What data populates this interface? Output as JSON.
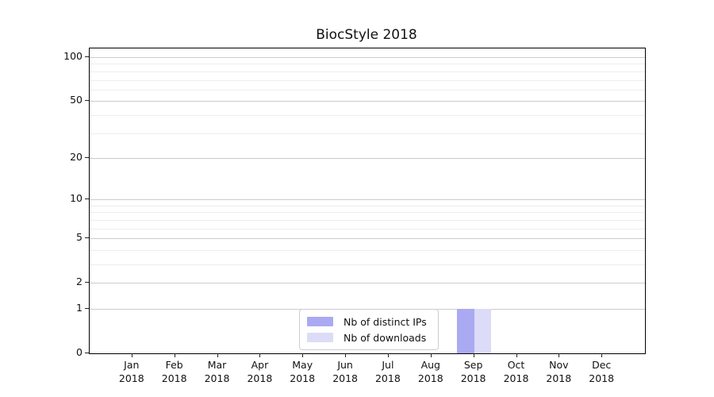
{
  "title": "BiocStyle 2018",
  "chart_data": {
    "type": "bar",
    "title": "BiocStyle 2018",
    "categories": [
      "Jan",
      "Feb",
      "Mar",
      "Apr",
      "May",
      "Jun",
      "Jul",
      "Aug",
      "Sep",
      "Oct",
      "Nov",
      "Dec"
    ],
    "year_label": "2018",
    "series": [
      {
        "name": "Nb of distinct IPs",
        "color": "#aaaaf2",
        "values": [
          0,
          0,
          0,
          0,
          0,
          0,
          0,
          0,
          1,
          0,
          0,
          0
        ]
      },
      {
        "name": "Nb of downloads",
        "color": "#dcdcf8",
        "values": [
          0,
          0,
          0,
          0,
          0,
          0,
          0,
          0,
          1,
          0,
          0,
          0
        ]
      }
    ],
    "y_axis": {
      "scale": "log1p",
      "major_ticks": [
        0,
        1,
        2,
        5,
        10,
        20,
        50,
        100
      ],
      "minor_ticks": [
        3,
        4,
        6,
        7,
        8,
        9,
        30,
        40,
        60,
        70,
        80,
        90
      ],
      "range": [
        0,
        100
      ]
    },
    "x_axis": {
      "tick_labels_two_lines": true
    },
    "grid": true,
    "legend_position": "lower center",
    "colors": {
      "major_grid": "#cccccc",
      "minor_grid": "#ededed",
      "spine": "#000000",
      "text": "#111111"
    }
  }
}
